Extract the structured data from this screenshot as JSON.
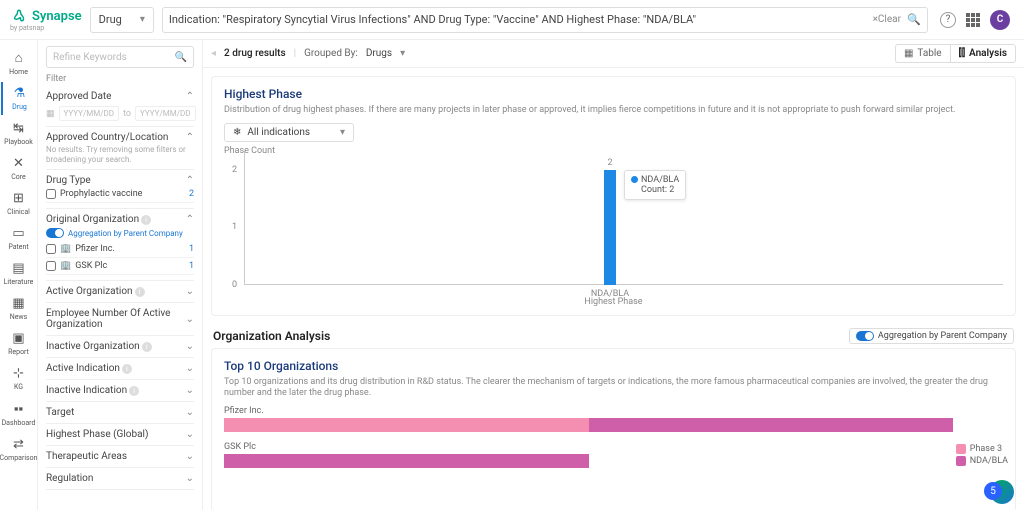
{
  "brand": {
    "name": "Synapse",
    "tagline": "by patsnap"
  },
  "category": {
    "selected": "Drug"
  },
  "search": {
    "query": "Indication: \"Respiratory Syncytial Virus Infections\" AND Drug Type: \"Vaccine\" AND Highest Phase: \"NDA/BLA\"",
    "clear": "×Clear"
  },
  "avatar_initial": "C",
  "nav": [
    {
      "label": "Home",
      "icon": "⌂"
    },
    {
      "label": "Drug",
      "icon": "⚗"
    },
    {
      "label": "Playbook",
      "icon": "↹"
    },
    {
      "label": "Core",
      "icon": "✕"
    },
    {
      "label": "Clinical",
      "icon": "⊞"
    },
    {
      "label": "Patent",
      "icon": "▭"
    },
    {
      "label": "Literature",
      "icon": "▤"
    },
    {
      "label": "News",
      "icon": "▦"
    },
    {
      "label": "Report",
      "icon": "▣"
    },
    {
      "label": "KG",
      "icon": "⊹"
    },
    {
      "label": "Dashboard",
      "icon": "▪▪"
    },
    {
      "label": "Comparison",
      "icon": "⇄"
    }
  ],
  "filter_placeholder": "Refine Keywords",
  "filter_label": "Filter",
  "date_section": {
    "title": "Approved Date",
    "from_ph": "YYYY/MM/DD",
    "to_ph": "YYYY/MM/DD",
    "sep": "to"
  },
  "loc_section": {
    "title": "Approved Country/Location",
    "note": "No results. Try removing some filters or broadening your search."
  },
  "drugtype_section": {
    "title": "Drug Type",
    "items": [
      {
        "label": "Prophylactic vaccine",
        "count": "2"
      }
    ]
  },
  "org_section": {
    "title": "Original Organization",
    "agg": "Aggregation by Parent Company",
    "items": [
      {
        "label": "Pfizer Inc.",
        "count": "1"
      },
      {
        "label": "GSK Plc",
        "count": "1"
      }
    ]
  },
  "collapsed_sections": [
    "Active Organization",
    "Employee Number Of Active Organization",
    "Inactive Organization",
    "Active Indication",
    "Inactive Indication",
    "Target",
    "Highest Phase (Global)",
    "Therapeutic Areas",
    "Regulation"
  ],
  "collapsed_info": [
    true,
    false,
    true,
    true,
    true,
    false,
    false,
    false,
    false
  ],
  "results": {
    "count_text": "2 drug results",
    "group_label": "Grouped By:",
    "group_value": "Drugs"
  },
  "view_tabs": {
    "table": "Table",
    "analysis": "Analysis"
  },
  "phase_card": {
    "title": "Highest Phase",
    "desc": "Distribution of drug highest phases. If there are many projects in later phase or approved, it implies fierce competitions in future and it is not appropriate to push forward similar project.",
    "dropdown": "All indications",
    "y_title": "Phase Count",
    "x_title": "Highest Phase",
    "type": "bar",
    "ylim": [
      0,
      2
    ],
    "yticks": [
      0,
      1,
      2
    ],
    "categories": [
      "NDA/BLA"
    ],
    "values": [
      2
    ],
    "bar_color": "#1e88e5",
    "tooltip": {
      "series": "NDA/BLA",
      "count_label": "Count:",
      "count": "2"
    }
  },
  "org_analysis": {
    "section": "Organization Analysis",
    "agg": "Aggregation by Parent Company",
    "title": "Top 10 Organizations",
    "desc": "Top 10 organizations and its drug distribution in R&D status. The clearer the mechanism of targets or indications, the more famous pharmaceutical companies are involved, the greater the drug number and the later the drug phase.",
    "type": "stacked-bar-horizontal",
    "phase3_color": "#f48fb1",
    "nda_color": "#ce5fa8",
    "rows": [
      {
        "label": "Pfizer Inc.",
        "segments": [
          {
            "key": "phase3",
            "frac": 0.5
          },
          {
            "key": "nda",
            "frac": 0.5
          }
        ]
      },
      {
        "label": "GSK Plc",
        "segments": [
          {
            "key": "nda",
            "frac": 0.5
          }
        ]
      }
    ],
    "legend": [
      {
        "label": "Phase 3",
        "key": "phase3"
      },
      {
        "label": "NDA/BLA",
        "key": "nda"
      }
    ]
  },
  "badge_count": "5"
}
